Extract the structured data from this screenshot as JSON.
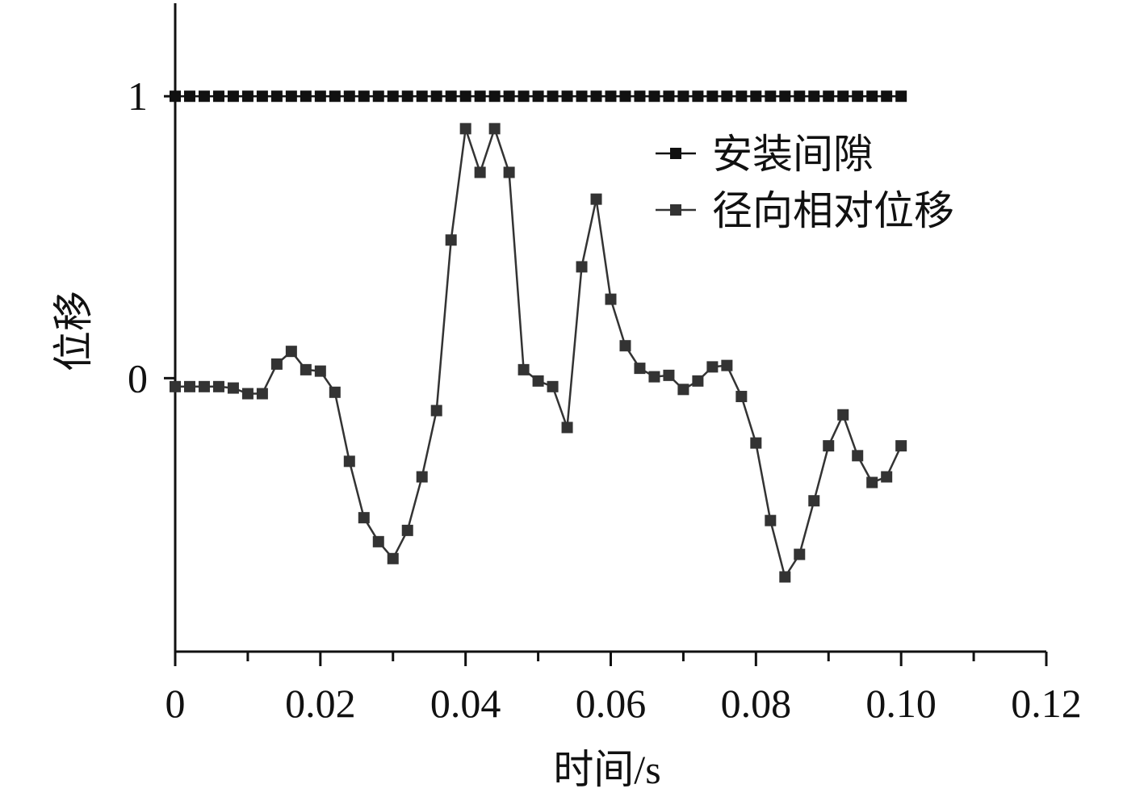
{
  "chart_data": {
    "type": "line",
    "xlabel": "时间/s",
    "ylabel": "位移",
    "xlim": [
      0,
      0.12
    ],
    "ylim": [
      -0.97,
      1.33
    ],
    "x_ticks": [
      {
        "value": 0,
        "label": "0"
      },
      {
        "value": 0.02,
        "label": "0.02"
      },
      {
        "value": 0.04,
        "label": "0.04"
      },
      {
        "value": 0.06,
        "label": "0.06"
      },
      {
        "value": 0.08,
        "label": "0.08"
      },
      {
        "value": 0.1,
        "label": "0.10"
      },
      {
        "value": 0.12,
        "label": "0.12"
      }
    ],
    "y_ticks": [
      {
        "value": 0,
        "label": "0"
      },
      {
        "value": 1,
        "label": "1"
      }
    ],
    "grid": false,
    "legend_position": "top-right",
    "series": [
      {
        "name": "安装间隙",
        "color": "#111111",
        "marker": "square",
        "x": [
          0,
          0.002,
          0.004,
          0.006,
          0.008,
          0.01,
          0.012,
          0.014,
          0.016,
          0.018,
          0.02,
          0.022,
          0.024,
          0.026,
          0.028,
          0.03,
          0.032,
          0.034,
          0.036,
          0.038,
          0.04,
          0.042,
          0.044,
          0.046,
          0.048,
          0.05,
          0.052,
          0.054,
          0.056,
          0.058,
          0.06,
          0.062,
          0.064,
          0.066,
          0.068,
          0.07,
          0.072,
          0.074,
          0.076,
          0.078,
          0.08,
          0.082,
          0.084,
          0.086,
          0.088,
          0.09,
          0.092,
          0.094,
          0.096,
          0.098,
          0.1
        ],
        "y": [
          1,
          1,
          1,
          1,
          1,
          1,
          1,
          1,
          1,
          1,
          1,
          1,
          1,
          1,
          1,
          1,
          1,
          1,
          1,
          1,
          1,
          1,
          1,
          1,
          1,
          1,
          1,
          1,
          1,
          1,
          1,
          1,
          1,
          1,
          1,
          1,
          1,
          1,
          1,
          1,
          1,
          1,
          1,
          1,
          1,
          1,
          1,
          1,
          1,
          1,
          1
        ]
      },
      {
        "name": "径向相对位移",
        "color": "#333333",
        "marker": "square",
        "x": [
          0,
          0.002,
          0.004,
          0.006,
          0.008,
          0.01,
          0.012,
          0.014,
          0.016,
          0.018,
          0.02,
          0.022,
          0.024,
          0.026,
          0.028,
          0.03,
          0.032,
          0.034,
          0.036,
          0.038,
          0.04,
          0.042,
          0.044,
          0.046,
          0.048,
          0.05,
          0.052,
          0.054,
          0.056,
          0.058,
          0.06,
          0.062,
          0.064,
          0.066,
          0.068,
          0.07,
          0.072,
          0.074,
          0.076,
          0.078,
          0.08,
          0.082,
          0.084,
          0.086,
          0.088,
          0.09,
          0.092,
          0.094,
          0.096,
          0.098,
          0.1
        ],
        "y": [
          -0.03,
          -0.03,
          -0.03,
          -0.03,
          -0.035,
          -0.055,
          -0.055,
          0.05,
          0.095,
          0.03,
          0.025,
          -0.05,
          -0.295,
          -0.495,
          -0.58,
          -0.64,
          -0.54,
          -0.35,
          -0.115,
          0.49,
          0.885,
          0.73,
          0.885,
          0.73,
          0.03,
          -0.01,
          -0.03,
          -0.175,
          0.395,
          0.635,
          0.28,
          0.115,
          0.035,
          0.005,
          0.01,
          -0.04,
          -0.01,
          0.04,
          0.045,
          -0.065,
          -0.23,
          -0.505,
          -0.705,
          -0.625,
          -0.435,
          -0.24,
          -0.13,
          -0.275,
          -0.37,
          -0.35,
          -0.24
        ]
      }
    ]
  }
}
